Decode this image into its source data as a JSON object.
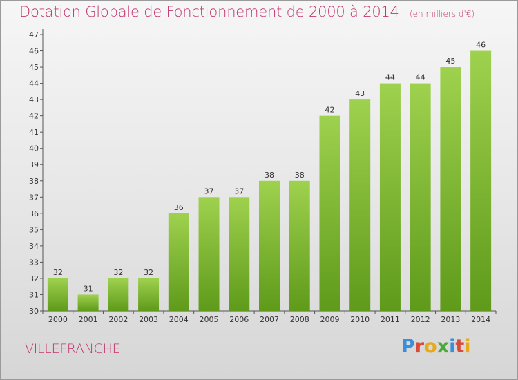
{
  "header": {
    "title": "Dotation Globale de Fonctionnement de 2000 à 2014",
    "unit": "(en milliers d'€)"
  },
  "commune": "VILLEFRANCHE",
  "logo": {
    "text": "Proxiti",
    "colors": [
      "#3a8fd8",
      "#d94a3b",
      "#e8a91a",
      "#4aa83a",
      "#3a8fd8",
      "#d94a3b",
      "#e8a91a"
    ]
  },
  "colors": {
    "bar_top": "#9ed14e",
    "bar_bottom": "#5f9a1a",
    "title": "#c2376e"
  },
  "chart_data": {
    "type": "bar",
    "categories": [
      "2000",
      "2001",
      "2002",
      "2003",
      "2004",
      "2005",
      "2006",
      "2007",
      "2008",
      "2009",
      "2010",
      "2011",
      "2012",
      "2013",
      "2014"
    ],
    "values": [
      32,
      31,
      32,
      32,
      36,
      37,
      37,
      38,
      38,
      42,
      43,
      44,
      44,
      45,
      46
    ],
    "ylim": [
      30,
      47
    ],
    "yticks": [
      30,
      31,
      32,
      33,
      34,
      35,
      36,
      37,
      38,
      39,
      40,
      41,
      42,
      43,
      44,
      45,
      46,
      47
    ],
    "grid": false,
    "legend": "none"
  }
}
